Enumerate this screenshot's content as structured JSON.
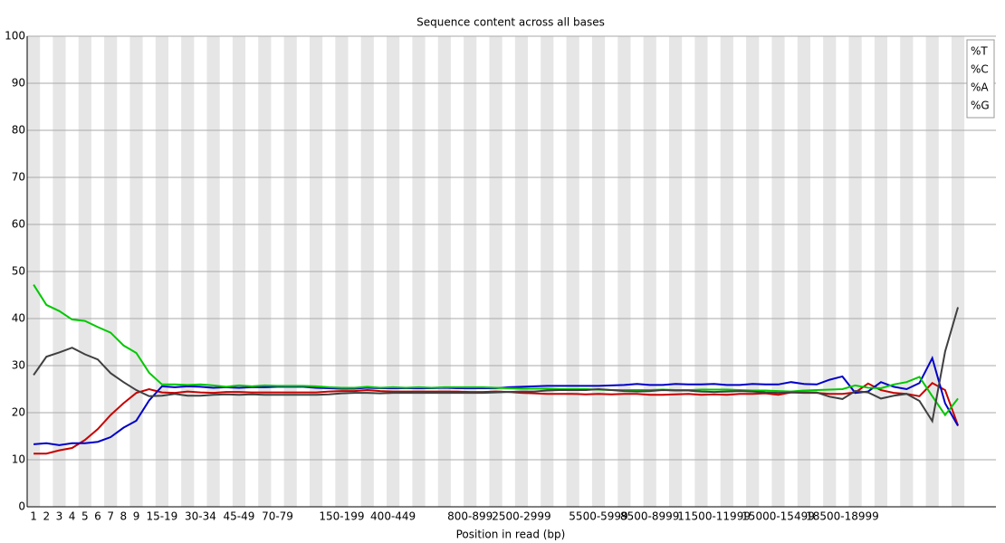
{
  "chart_data": {
    "type": "line",
    "title": "Sequence content across all bases",
    "xlabel": "Position in read (bp)",
    "categories": [
      "1",
      "2",
      "3",
      "4",
      "5",
      "6",
      "7",
      "8",
      "9",
      null,
      "15-19",
      null,
      null,
      "30-34",
      null,
      null,
      "45-49",
      null,
      null,
      "70-79",
      null,
      null,
      null,
      null,
      "150-199",
      null,
      null,
      null,
      "400-449",
      null,
      null,
      null,
      null,
      null,
      "800-899",
      null,
      null,
      null,
      "2500-2999",
      null,
      null,
      null,
      null,
      null,
      "5500-5999",
      null,
      null,
      null,
      "8500-8999",
      null,
      null,
      null,
      null,
      "11500-11999",
      null,
      null,
      null,
      null,
      "15000-15499",
      null,
      null,
      null,
      null,
      "18500-18999",
      null,
      null,
      null,
      null,
      null,
      null,
      null,
      null,
      null
    ],
    "series": [
      {
        "name": "%T",
        "color": "#c80000",
        "values": [
          11.3,
          11.3,
          12.0,
          12.5,
          14.2,
          16.5,
          19.5,
          22.0,
          24.2,
          25.0,
          24.3,
          24.2,
          24.5,
          24.3,
          24.2,
          24.4,
          24.4,
          24.3,
          24.3,
          24.3,
          24.3,
          24.3,
          24.3,
          24.5,
          24.6,
          24.6,
          24.8,
          24.6,
          24.5,
          24.5,
          24.5,
          24.5,
          24.5,
          24.5,
          24.4,
          24.4,
          24.5,
          24.4,
          24.2,
          24.1,
          24.0,
          24.0,
          24.0,
          23.9,
          24.0,
          23.9,
          24.0,
          24.0,
          23.8,
          23.8,
          23.9,
          24.0,
          23.8,
          23.9,
          23.8,
          24.0,
          24.0,
          24.1,
          23.8,
          24.3,
          24.2,
          24.2,
          24.0,
          24.0,
          24.3,
          26.2,
          24.8,
          24.2,
          24.0,
          23.5,
          26.3,
          24.8,
          17.3
        ]
      },
      {
        "name": "%C",
        "color": "#0000c8",
        "values": [
          13.3,
          13.5,
          13.1,
          13.5,
          13.5,
          13.8,
          14.8,
          16.8,
          18.3,
          22.6,
          25.6,
          25.4,
          25.6,
          25.5,
          25.3,
          25.4,
          25.3,
          25.4,
          25.4,
          25.5,
          25.5,
          25.5,
          25.3,
          25.2,
          25.1,
          25.1,
          25.3,
          25.2,
          25.2,
          25.2,
          25.2,
          25.2,
          25.3,
          25.2,
          25.2,
          25.2,
          25.2,
          25.4,
          25.5,
          25.6,
          25.7,
          25.7,
          25.7,
          25.7,
          25.7,
          25.8,
          25.9,
          26.1,
          25.9,
          25.9,
          26.1,
          26.0,
          26.0,
          26.1,
          25.9,
          25.9,
          26.1,
          26.0,
          26.0,
          26.5,
          26.1,
          26.0,
          27.0,
          27.7,
          24.2,
          24.5,
          26.5,
          25.5,
          25.0,
          26.3,
          31.6,
          22.0,
          17.2
        ]
      },
      {
        "name": "%A",
        "color": "#00c800",
        "values": [
          47.2,
          42.9,
          41.6,
          39.8,
          39.5,
          38.2,
          37.0,
          34.3,
          32.7,
          28.5,
          26.0,
          26.0,
          25.9,
          26.0,
          25.8,
          25.5,
          25.8,
          25.6,
          25.8,
          25.7,
          25.7,
          25.7,
          25.6,
          25.4,
          25.3,
          25.3,
          25.5,
          25.3,
          25.4,
          25.3,
          25.4,
          25.3,
          25.4,
          25.4,
          25.4,
          25.4,
          25.3,
          25.2,
          25.1,
          25.1,
          25.1,
          25.0,
          25.0,
          25.0,
          24.9,
          24.8,
          24.8,
          24.8,
          24.8,
          24.9,
          24.8,
          24.8,
          24.9,
          24.9,
          24.9,
          24.8,
          24.7,
          24.7,
          24.6,
          24.5,
          24.7,
          24.8,
          24.9,
          25.0,
          25.8,
          25.3,
          25.2,
          26.0,
          26.5,
          27.6,
          23.5,
          19.5,
          23.0
        ]
      },
      {
        "name": "%G",
        "color": "#404040",
        "values": [
          28.0,
          31.9,
          32.8,
          33.8,
          32.4,
          31.3,
          28.4,
          26.5,
          24.8,
          23.5,
          23.6,
          24.0,
          23.6,
          23.6,
          23.8,
          23.9,
          23.8,
          23.9,
          23.8,
          23.8,
          23.8,
          23.8,
          23.8,
          23.9,
          24.1,
          24.2,
          24.2,
          24.1,
          24.2,
          24.2,
          24.2,
          24.2,
          24.2,
          24.2,
          24.2,
          24.2,
          24.3,
          24.4,
          24.5,
          24.5,
          24.7,
          24.8,
          24.8,
          24.8,
          25.0,
          24.8,
          24.6,
          24.5,
          24.6,
          24.8,
          24.7,
          24.7,
          24.5,
          24.4,
          24.5,
          24.6,
          24.5,
          24.3,
          24.2,
          24.3,
          24.3,
          24.3,
          23.4,
          22.9,
          24.6,
          24.3,
          23.0,
          23.6,
          24.0,
          22.5,
          18.2,
          33.0,
          42.4
        ]
      }
    ],
    "ylim": [
      0,
      100
    ],
    "yticks": [
      0,
      10,
      20,
      30,
      40,
      50,
      60,
      70,
      80,
      90,
      100
    ],
    "grid": true,
    "legend": "top-right"
  }
}
